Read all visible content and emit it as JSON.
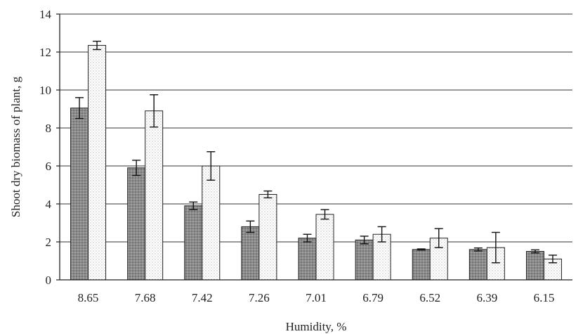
{
  "chart_data": {
    "type": "bar",
    "xlabel": "Humidity, %",
    "ylabel": "Shoot dry biomass of plant, g",
    "ylim": [
      0,
      14
    ],
    "yticks": [
      0,
      2,
      4,
      6,
      8,
      10,
      12,
      14
    ],
    "grid": "horizontal",
    "categories": [
      "8.65",
      "7.68",
      "7.42",
      "7.26",
      "7.01",
      "6.79",
      "6.52",
      "6.39",
      "6.15"
    ],
    "series": [
      {
        "color": "#8a8a8a",
        "pattern": "dark-dotted",
        "values": [
          9.05,
          5.9,
          3.9,
          2.8,
          2.2,
          2.1,
          1.6,
          1.6,
          1.5
        ],
        "error": [
          0.55,
          0.4,
          0.2,
          0.3,
          0.2,
          0.2,
          0.03,
          0.08,
          0.08
        ]
      },
      {
        "color": "#f5f5f5",
        "pattern": "light-dotted",
        "values": [
          12.35,
          8.9,
          6.0,
          4.5,
          3.45,
          2.4,
          2.2,
          1.7,
          1.1
        ],
        "error": [
          0.22,
          0.85,
          0.75,
          0.18,
          0.25,
          0.4,
          0.5,
          0.8,
          0.2
        ]
      }
    ]
  }
}
